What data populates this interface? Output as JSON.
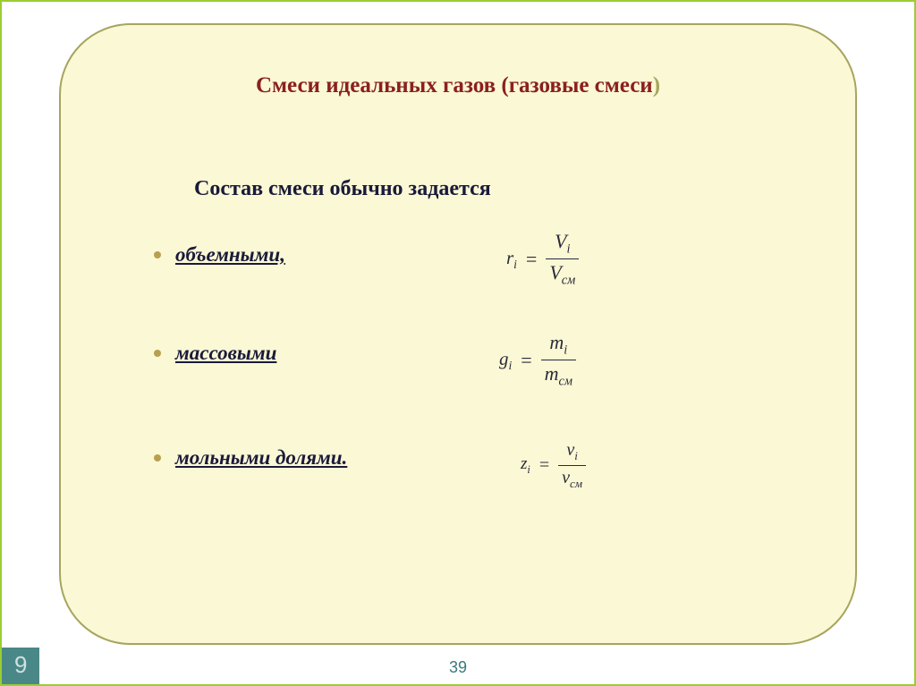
{
  "colors": {
    "outer_border": "#9acd32",
    "inner_bg": "#fbf8d5",
    "inner_border": "#a6a55e",
    "title_color": "#8b2020",
    "paren_color": "#a6a55e",
    "text_color": "#1a1a3a",
    "bullet_color": "#b8a050",
    "formula_color": "#2a2a3a",
    "footer_bg": "#4a8888",
    "footer_text": "#d0e0e0",
    "page_num_color": "#3a7a7a"
  },
  "title": {
    "main": "Смеси идеальных газов  (газовые смеси",
    "close_paren": ")",
    "fontsize": 25
  },
  "subtitle": {
    "text": "Состав смеси обычно задается",
    "fontsize": 24
  },
  "bullets": [
    {
      "label": "объемными,",
      "fontsize": 23
    },
    {
      "label": "массовыми",
      "fontsize": 23
    },
    {
      "label": " мольными долями.",
      "fontsize": 23
    }
  ],
  "formulas": [
    {
      "lhs_var": "r",
      "lhs_sub": "i",
      "num_var": "V",
      "num_sub": "i",
      "den_var": "V",
      "den_sub": "см",
      "fontsize": 22
    },
    {
      "lhs_var": "g",
      "lhs_sub": "i",
      "num_var": "m",
      "num_sub": "i",
      "den_var": "m",
      "den_sub": "см",
      "fontsize": 22
    },
    {
      "lhs_var": "z",
      "lhs_sub": "i",
      "num_var": "ν",
      "num_sub": "i",
      "den_var": "ν",
      "den_sub": "см",
      "fontsize": 20
    }
  ],
  "page_number": "39",
  "slide_number": "9"
}
